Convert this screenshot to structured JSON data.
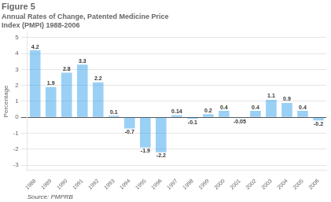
{
  "chart_data": {
    "type": "bar",
    "title": "Figure 5",
    "subtitle": "Annual Rates of Change, Patented Medicine Price\nIndex (PMPI) 1988-2006",
    "y_label": "Percentage",
    "annotation": "Source: PMPRB",
    "categories": [
      "1988",
      "1989",
      "1990",
      "1991",
      "1992",
      "1993",
      "1994",
      "1995",
      "1996",
      "1997",
      "1998",
      "1999",
      "2000",
      "2001",
      "2002",
      "2003",
      "2004",
      "2005",
      "2006"
    ],
    "values": [
      4.2,
      1.9,
      2.8,
      3.3,
      2.2,
      0.1,
      -0.7,
      -1.9,
      -2.2,
      0.14,
      -0.1,
      0.2,
      0.4,
      -0.05,
      0.4,
      1.1,
      0.9,
      0.4,
      -0.2
    ],
    "ylim": [
      -3.3,
      5.3
    ],
    "yticks": [
      -3,
      -2,
      -1,
      0,
      1,
      2,
      3,
      4,
      5
    ],
    "grid": true,
    "data_labels": true
  }
}
